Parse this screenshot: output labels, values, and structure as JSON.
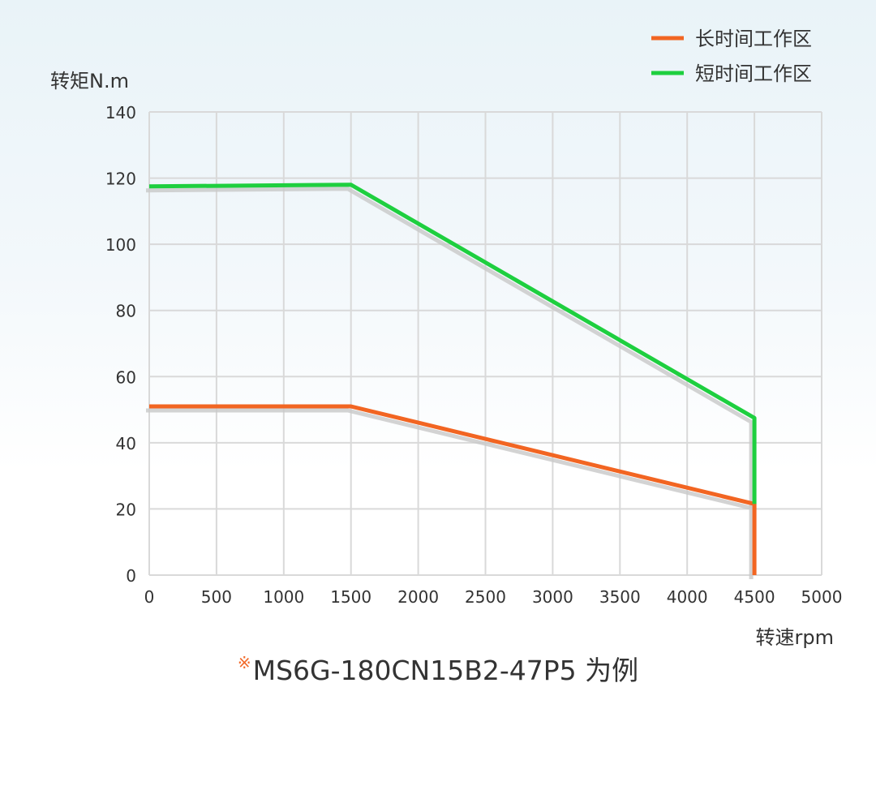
{
  "chart_data": {
    "type": "line",
    "ylabel": "转矩N.m",
    "xlabel": "转速rpm",
    "xlim": [
      0,
      5000
    ],
    "ylim": [
      0,
      140
    ],
    "x_ticks": [
      0,
      500,
      1000,
      1500,
      2000,
      2500,
      3000,
      3500,
      4000,
      4500,
      5000
    ],
    "y_ticks": [
      0,
      20,
      40,
      60,
      80,
      100,
      120,
      140
    ],
    "grid": true,
    "legend_position": "top-right",
    "series": [
      {
        "name": "长时间工作区",
        "color": "#f26522",
        "points": [
          [
            0,
            51
          ],
          [
            1500,
            51
          ],
          [
            4500,
            21.5
          ],
          [
            4500,
            0
          ]
        ]
      },
      {
        "name": "短时间工作区",
        "color": "#1ecf3f",
        "points": [
          [
            0,
            117.5
          ],
          [
            1500,
            118
          ],
          [
            4500,
            47.5
          ],
          [
            4500,
            21.5
          ]
        ]
      }
    ]
  },
  "footnote": {
    "mark": "※",
    "text": "MS6G-180CN15B2-47P5 为例"
  }
}
